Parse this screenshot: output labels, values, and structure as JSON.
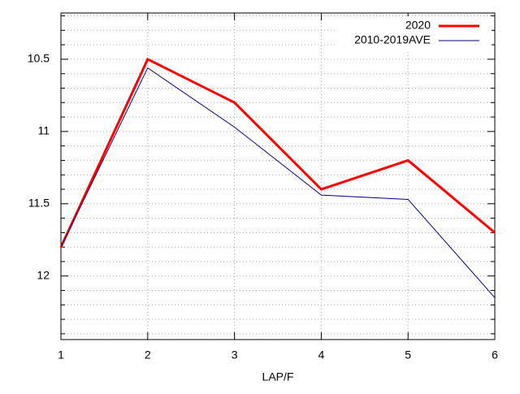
{
  "chart_data": {
    "type": "line",
    "x_label": "LAP/F",
    "x": [
      1,
      2,
      3,
      4,
      5,
      6
    ],
    "xlim": [
      1,
      6
    ],
    "xticks": [
      1,
      2,
      3,
      4,
      5,
      6
    ],
    "ylim": [
      10.18,
      12.44
    ],
    "y_reversed": true,
    "yticks": [
      10.5,
      11,
      11.5,
      12
    ],
    "yminorticks": [
      10.2,
      10.3,
      10.4,
      10.6,
      10.7,
      10.8,
      10.9,
      11.1,
      11.2,
      11.3,
      11.4,
      11.6,
      11.7,
      11.8,
      11.9,
      12.1,
      12.2,
      12.3,
      12.4
    ],
    "grid": true,
    "legend": "top-right",
    "series": [
      {
        "name": "2020",
        "color": "#ff0000",
        "width": 3,
        "values": [
          11.8,
          10.5,
          10.8,
          11.4,
          11.2,
          11.7
        ]
      },
      {
        "name": "2010-2019AVE",
        "color": "#000080",
        "width": 1,
        "values": [
          11.8,
          10.56,
          10.97,
          11.44,
          11.47,
          12.15
        ]
      }
    ]
  }
}
